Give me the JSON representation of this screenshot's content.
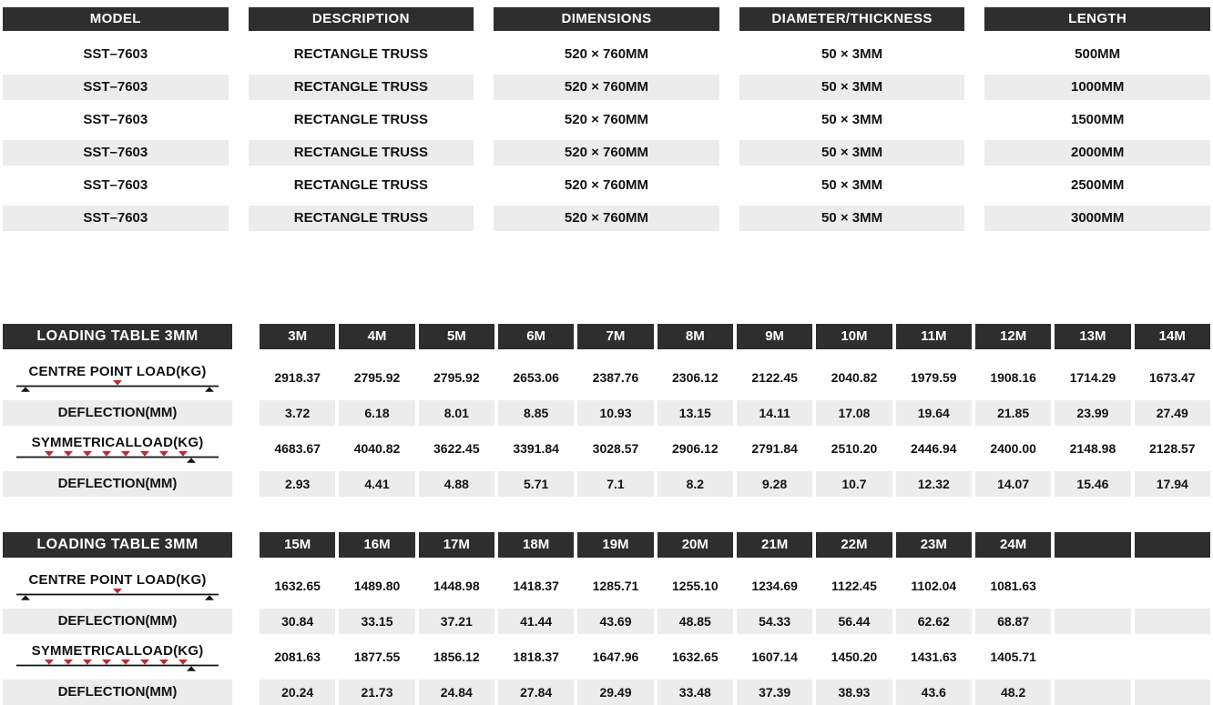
{
  "colors": {
    "header_bg": "#2e2e2e",
    "header_text": "#ffffff",
    "alt_row_bg": "#ececec",
    "body_text": "#121212",
    "load_arrow_red": "#c1272d",
    "support_black": "#121212"
  },
  "product_table": {
    "columns": [
      {
        "key": "model",
        "label": "MODEL"
      },
      {
        "key": "description",
        "label": "DESCRIPTION"
      },
      {
        "key": "dimensions",
        "label": "DIMENSIONS"
      },
      {
        "key": "diameter-thickness",
        "label": "DIAMETER/THICKNESS"
      },
      {
        "key": "length",
        "label": "LENGTH"
      }
    ],
    "rows": [
      [
        "SST–7603",
        "RECTANGLE TRUSS",
        "520 × 760MM",
        "50 × 3MM",
        "500MM"
      ],
      [
        "SST–7603",
        "RECTANGLE TRUSS",
        "520 × 760MM",
        "50 × 3MM",
        "1000MM"
      ],
      [
        "SST–7603",
        "RECTANGLE TRUSS",
        "520 × 760MM",
        "50 × 3MM",
        "1500MM"
      ],
      [
        "SST–7603",
        "RECTANGLE TRUSS",
        "520 × 760MM",
        "50 × 3MM",
        "2000MM"
      ],
      [
        "SST–7603",
        "RECTANGLE TRUSS",
        "520 × 760MM",
        "50 × 3MM",
        "2500MM"
      ],
      [
        "SST–7603",
        "RECTANGLE TRUSS",
        "520 × 760MM",
        "50 × 3MM",
        "3000MM"
      ]
    ]
  },
  "loading_tables": [
    {
      "title": "LOADING TABLE 3MM",
      "span_headers": [
        "3M",
        "4M",
        "5M",
        "6M",
        "7M",
        "8M",
        "9M",
        "10M",
        "11M",
        "12M",
        "13M",
        "14M"
      ],
      "rows": [
        {
          "label": "CENTRE POINT LOAD(KG)",
          "diagram": "centre-point-load",
          "kind": "load",
          "values": [
            "2918.37",
            "2795.92",
            "2795.92",
            "2653.06",
            "2387.76",
            "2306.12",
            "2122.45",
            "2040.82",
            "1979.59",
            "1908.16",
            "1714.29",
            "1673.47"
          ]
        },
        {
          "label": "DEFLECTION(MM)",
          "kind": "defl",
          "values": [
            "3.72",
            "6.18",
            "8.01",
            "8.85",
            "10.93",
            "13.15",
            "14.11",
            "17.08",
            "19.64",
            "21.85",
            "23.99",
            "27.49"
          ]
        },
        {
          "label": "SYMMETRICALLOAD(KG)",
          "diagram": "symmetrical-load",
          "kind": "load",
          "values": [
            "4683.67",
            "4040.82",
            "3622.45",
            "3391.84",
            "3028.57",
            "2906.12",
            "2791.84",
            "2510.20",
            "2446.94",
            "2400.00",
            "2148.98",
            "2128.57"
          ]
        },
        {
          "label": "DEFLECTION(MM)",
          "kind": "defl",
          "values": [
            "2.93",
            "4.41",
            "4.88",
            "5.71",
            "7.1",
            "8.2",
            "9.28",
            "10.7",
            "12.32",
            "14.07",
            "15.46",
            "17.94"
          ]
        }
      ]
    },
    {
      "title": "LOADING TABLE 3MM",
      "span_headers": [
        "15M",
        "16M",
        "17M",
        "18M",
        "19M",
        "20M",
        "21M",
        "22M",
        "23M",
        "24M",
        "",
        ""
      ],
      "rows": [
        {
          "label": "CENTRE POINT LOAD(KG)",
          "diagram": "centre-point-load",
          "kind": "load",
          "values": [
            "1632.65",
            "1489.80",
            "1448.98",
            "1418.37",
            "1285.71",
            "1255.10",
            "1234.69",
            "1122.45",
            "1102.04",
            "1081.63",
            "",
            ""
          ]
        },
        {
          "label": "DEFLECTION(MM)",
          "kind": "defl",
          "values": [
            "30.84",
            "33.15",
            "37.21",
            "41.44",
            "43.69",
            "48.85",
            "54.33",
            "56.44",
            "62.62",
            "68.87",
            "",
            ""
          ]
        },
        {
          "label": "SYMMETRICALLOAD(KG)",
          "diagram": "symmetrical-load",
          "kind": "load",
          "values": [
            "2081.63",
            "1877.55",
            "1856.12",
            "1818.37",
            "1647.96",
            "1632.65",
            "1607.14",
            "1450.20",
            "1431.63",
            "1405.71",
            "",
            ""
          ]
        },
        {
          "label": "DEFLECTION(MM)",
          "kind": "defl",
          "values": [
            "20.24",
            "21.73",
            "24.84",
            "27.84",
            "29.49",
            "33.48",
            "37.39",
            "38.93",
            "43.6",
            "48.2",
            "",
            ""
          ]
        }
      ]
    }
  ]
}
